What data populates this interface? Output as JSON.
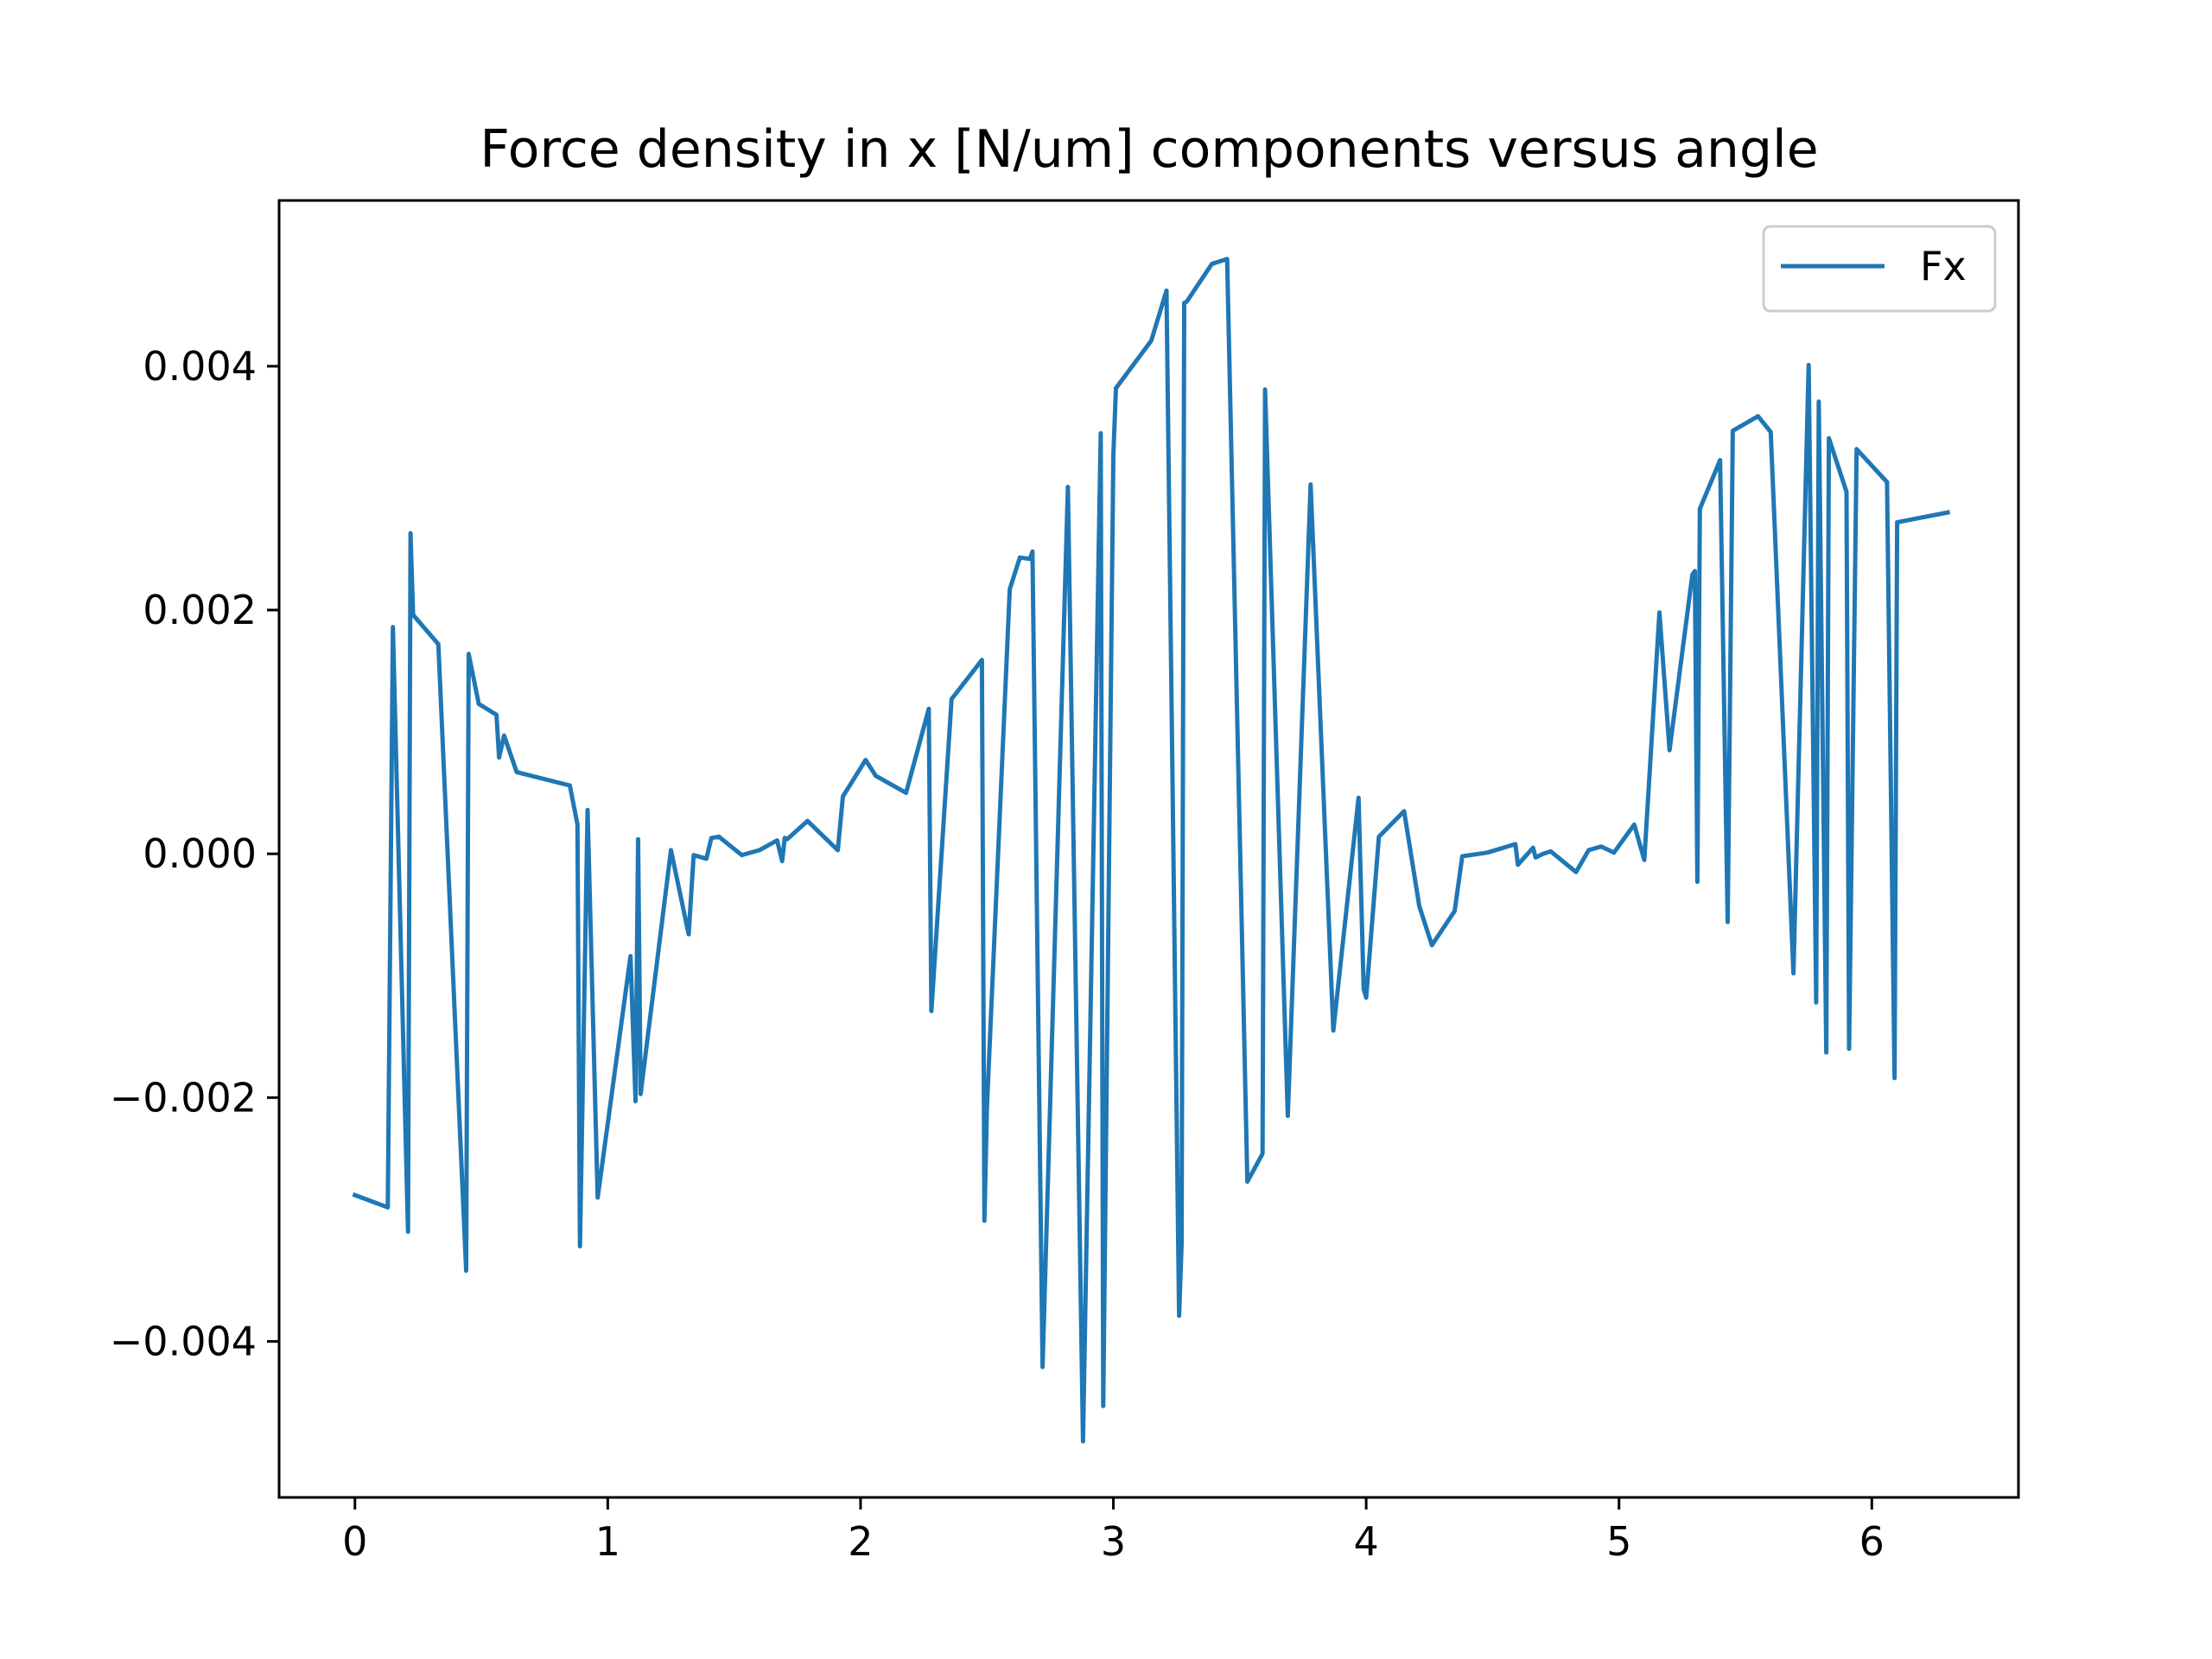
{
  "chart_data": {
    "type": "line",
    "title": "Force density in x [N/um] components versus angle",
    "xlabel": "",
    "ylabel": "",
    "xlim": [
      -0.3,
      6.58
    ],
    "ylim": [
      -0.00528,
      0.00536
    ],
    "xticks": [
      0,
      1,
      2,
      3,
      4,
      5,
      6
    ],
    "xtick_labels": [
      "0",
      "1",
      "2",
      "3",
      "4",
      "5",
      "6"
    ],
    "yticks": [
      -0.004,
      -0.002,
      0.0,
      0.002,
      0.004
    ],
    "ytick_labels": [
      "−0.004",
      "−0.002",
      "0.000",
      "0.002",
      "0.004"
    ],
    "grid": false,
    "legend_position": "upper right",
    "series": [
      {
        "name": "Fx",
        "color": "#1f77b4",
        "x": [
          0.0,
          0.13,
          0.15,
          0.21,
          0.22,
          0.23,
          0.33,
          0.44,
          0.45,
          0.49,
          0.56,
          0.57,
          0.59,
          0.64,
          0.85,
          0.88,
          0.89,
          0.92,
          0.96,
          1.09,
          1.11,
          1.12,
          1.13,
          1.25,
          1.32,
          1.34,
          1.39,
          1.41,
          1.44,
          1.53,
          1.6,
          1.67,
          1.69,
          1.7,
          1.71,
          1.79,
          1.91,
          1.93,
          2.02,
          2.06,
          2.18,
          2.27,
          2.28,
          2.36,
          2.48,
          2.49,
          2.5,
          2.59,
          2.63,
          2.67,
          2.68,
          2.72,
          2.82,
          2.88,
          2.95,
          2.96,
          3.0,
          3.01,
          3.15,
          3.21,
          3.26,
          3.27,
          3.28,
          3.29,
          3.39,
          3.45,
          3.53,
          3.59,
          3.6,
          3.69,
          3.78,
          3.87,
          3.97,
          3.99,
          4.0,
          4.05,
          4.15,
          4.21,
          4.26,
          4.35,
          4.38,
          4.48,
          4.59,
          4.6,
          4.66,
          4.67,
          4.7,
          4.73,
          4.83,
          4.88,
          4.93,
          4.98,
          5.06,
          5.1,
          5.16,
          5.2,
          5.29,
          5.3,
          5.31,
          5.32,
          5.4,
          5.43,
          5.45,
          5.55,
          5.6,
          5.69,
          5.75,
          5.78,
          5.79,
          5.82,
          5.83,
          5.9,
          5.91,
          5.94,
          6.06,
          6.09,
          6.1,
          6.3
        ],
        "values": [
          -0.0028,
          -0.0029,
          0.00186,
          -0.0031,
          0.00263,
          0.00196,
          0.00172,
          -0.00342,
          0.00164,
          0.00123,
          0.00114,
          0.00079,
          0.00097,
          0.00067,
          0.00056,
          0.00024,
          -0.00322,
          0.00036,
          -0.00282,
          -0.00084,
          -0.00203,
          0.00012,
          -0.00197,
          3e-05,
          -0.00066,
          -1e-05,
          -4e-05,
          0.00013,
          0.00014,
          -1e-05,
          3e-05,
          0.00011,
          -6e-05,
          0.00013,
          0.00012,
          0.00027,
          3e-05,
          0.00047,
          0.00077,
          0.00064,
          0.0005,
          0.00119,
          -0.00129,
          0.00127,
          0.00159,
          -0.00301,
          -0.00208,
          0.00217,
          0.00243,
          0.00242,
          0.00248,
          -0.00421,
          0.00301,
          -0.00482,
          0.00345,
          -0.00453,
          0.00327,
          0.00382,
          0.00421,
          0.00462,
          -0.00379,
          -0.0032,
          0.00452,
          0.00453,
          0.00484,
          0.00488,
          -0.00269,
          -0.00246,
          0.00381,
          -0.00215,
          0.00303,
          -0.00145,
          0.00046,
          -0.00111,
          -0.00118,
          0.00014,
          0.00035,
          -0.00043,
          -0.00075,
          -0.00047,
          -2e-05,
          1e-05,
          8e-05,
          -9e-05,
          5e-05,
          -3e-05,
          0.0,
          2e-05,
          -0.00015,
          3e-05,
          6e-05,
          1e-05,
          0.00024,
          -5e-05,
          0.00198,
          0.00085,
          0.00229,
          0.00232,
          -0.00023,
          0.00283,
          0.00323,
          -0.00056,
          0.00347,
          0.00359,
          0.00346,
          -0.00098,
          0.00401,
          -0.00122,
          0.00371,
          -0.00163,
          0.00341,
          0.00297,
          -0.0016,
          0.00332,
          0.00305,
          -0.00184,
          0.00272,
          0.0028
        ]
      }
    ]
  }
}
